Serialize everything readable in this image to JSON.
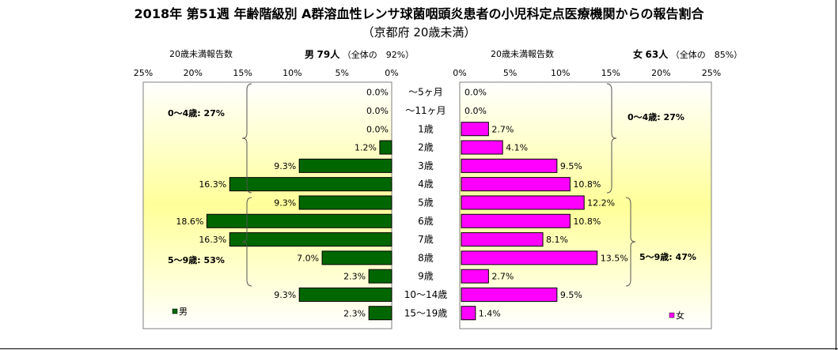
{
  "title": "2018年 第51週 年齢階級別 A群溶血性レンサ球菌咽頭炎患者の小児科定点医療機関からの報告割合",
  "subtitle": "（京都府 20歳未満）",
  "male_header": {
    "label": "20歳未満報告数",
    "sex": "男",
    "count": "79人",
    "ratio": "（全体の　92%）"
  },
  "female_header": {
    "label": "20歳未満報告数",
    "sex": "女",
    "count": "63人",
    "ratio": "（全体の　85%）"
  },
  "colors": {
    "male": "#006600",
    "female": "#ff00ff",
    "panel_top": "#ffffff",
    "panel_mid": "#ffff99"
  },
  "chart_data": {
    "type": "bar",
    "orientation": "horizontal-population-pyramid",
    "categories": [
      "～5ヶ月",
      "～11ヶ月",
      "1歳",
      "2歳",
      "3歳",
      "4歳",
      "5歳",
      "6歳",
      "7歳",
      "8歳",
      "9歳",
      "10～14歳",
      "15～19歳"
    ],
    "series": [
      {
        "name": "男",
        "values": [
          0.0,
          0.0,
          0.0,
          1.2,
          9.3,
          16.3,
          9.3,
          18.6,
          16.3,
          7.0,
          2.3,
          9.3,
          2.3
        ],
        "labels": [
          "0.0%",
          "0.0%",
          "0.0%",
          "1.2%",
          "9.3%",
          "16.3%",
          "9.3%",
          "18.6%",
          "16.3%",
          "7.0%",
          "2.3%",
          "9.3%",
          "2.3%"
        ]
      },
      {
        "name": "女",
        "values": [
          0.0,
          0.0,
          2.7,
          4.1,
          9.5,
          10.8,
          12.2,
          10.8,
          8.1,
          13.5,
          2.7,
          9.5,
          1.4
        ],
        "labels": [
          "0.0%",
          "0.0%",
          "2.7%",
          "4.1%",
          "9.5%",
          "10.8%",
          "12.2%",
          "10.8%",
          "8.1%",
          "13.5%",
          "2.7%",
          "9.5%",
          "1.4%"
        ]
      }
    ],
    "xlim": [
      0,
      25
    ],
    "male_ticks": [
      "25%",
      "20%",
      "15%",
      "10%",
      "5%",
      "0%"
    ],
    "female_ticks": [
      "0%",
      "5%",
      "10%",
      "15%",
      "20%",
      "25%"
    ],
    "annotations": {
      "male_0_4": "0～4歳: 27%",
      "male_5_9": "5～9歳: 53%",
      "female_0_4": "0～4歳: 27%",
      "female_5_9": "5～9歳: 47%"
    },
    "legend": {
      "male": "男",
      "female": "女",
      "placement": "bottom-left / bottom-right"
    }
  }
}
